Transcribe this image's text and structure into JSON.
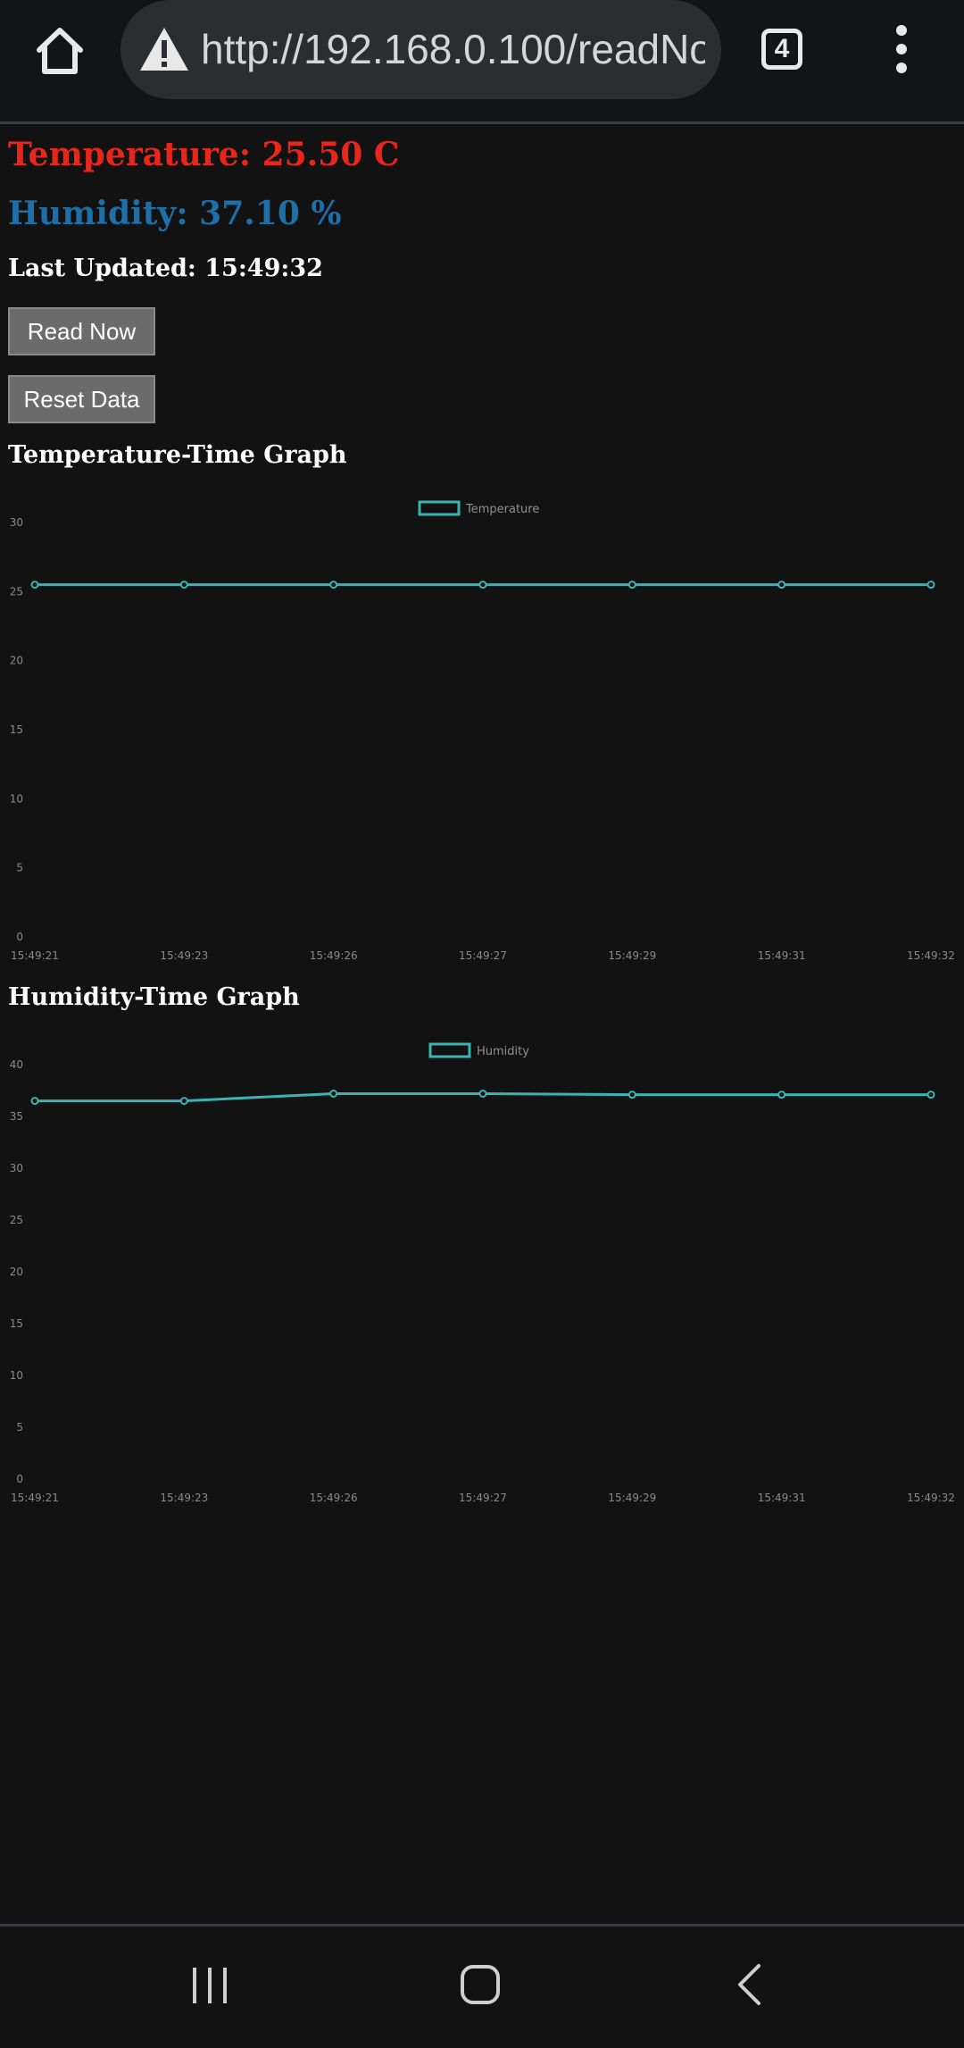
{
  "browser": {
    "url": "http://192.168.0.100/readNow",
    "tab_count": "4"
  },
  "readings": {
    "temperature": "Temperature: 25.50 C",
    "humidity": "Humidity: 37.10 %",
    "last_updated": "Last Updated: 15:49:32"
  },
  "buttons": {
    "read_now": "Read Now",
    "reset_data": "Reset Data"
  },
  "colors": {
    "temperature_text": "#e8261c",
    "humidity_text": "#1e6fa8",
    "series_line": "#3bb3b3"
  },
  "chart_data": [
    {
      "type": "line",
      "title": "Temperature-Time Graph",
      "x": [
        "15:49:21",
        "15:49:23",
        "15:49:26",
        "15:49:27",
        "15:49:29",
        "15:49:31",
        "15:49:32"
      ],
      "series": [
        {
          "name": "Temperature",
          "values": [
            25.5,
            25.5,
            25.5,
            25.5,
            25.5,
            25.5,
            25.5
          ]
        }
      ],
      "yticks": [
        0,
        5,
        10,
        15,
        20,
        25,
        30
      ],
      "ylim": [
        0,
        30
      ],
      "legend": "top-center",
      "grid": false
    },
    {
      "type": "line",
      "title": "Humidity-Time Graph",
      "x": [
        "15:49:21",
        "15:49:23",
        "15:49:26",
        "15:49:27",
        "15:49:29",
        "15:49:31",
        "15:49:32"
      ],
      "series": [
        {
          "name": "Humidity",
          "values": [
            36.5,
            36.5,
            37.2,
            37.2,
            37.1,
            37.1,
            37.1
          ]
        }
      ],
      "yticks": [
        0,
        5,
        10,
        15,
        20,
        25,
        30,
        35,
        40
      ],
      "ylim": [
        0,
        40
      ],
      "legend": "top-center",
      "grid": false
    }
  ]
}
